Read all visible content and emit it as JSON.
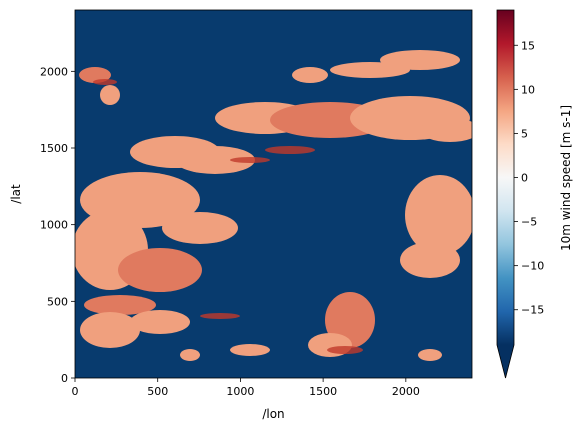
{
  "chart_data": {
    "type": "heatmap",
    "title": "",
    "xlabel": "/lon",
    "ylabel": "/lat",
    "xlim": [
      0,
      2400
    ],
    "ylim": [
      0,
      2400
    ],
    "x_ticks": [
      0,
      500,
      1000,
      1500,
      2000
    ],
    "y_ticks": [
      0,
      500,
      1000,
      1500,
      2000
    ],
    "grid": false,
    "colorbar": {
      "label": "10m wind speed [m s-1]",
      "colormap": "RdBu_r",
      "vmin": -19,
      "vmax": 19,
      "ticks": [
        -15,
        -10,
        -5,
        0,
        5,
        10,
        15
      ],
      "extend": "min"
    },
    "colors": {
      "background_low": "#083b6e",
      "high": "#f0a07e",
      "max": "#67001f"
    },
    "field_description": "mostly saturated minimum (dark blue) with scattered patches of 5–15 m s-1 (orange-red)"
  }
}
